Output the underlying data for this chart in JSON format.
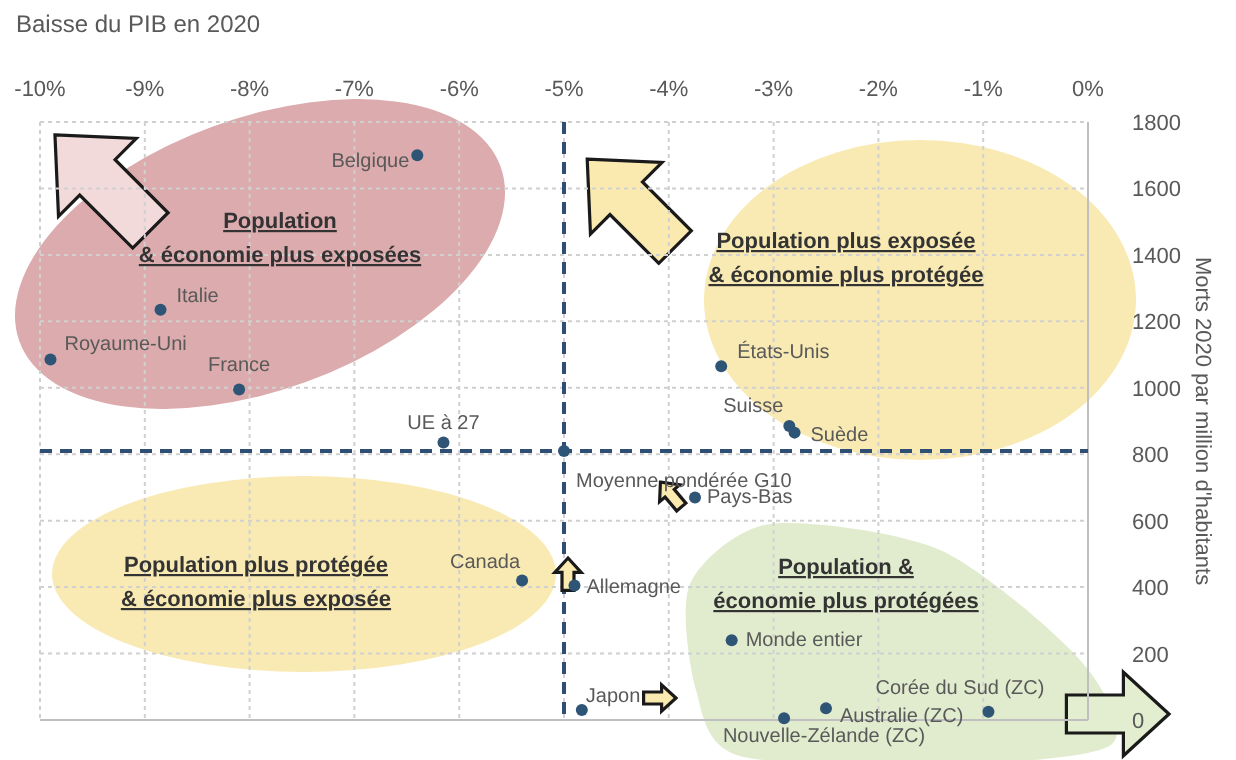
{
  "chart_data": {
    "type": "scatter",
    "title": "Baisse du PIB en 2020",
    "ylabel": "Morts 2020  par million d'habitants",
    "xlim": [
      -10,
      0
    ],
    "xticks": [
      {
        "value": -10,
        "label": "-10%"
      },
      {
        "value": -9,
        "label": "-9%"
      },
      {
        "value": -8,
        "label": "-8%"
      },
      {
        "value": -7,
        "label": "-7%"
      },
      {
        "value": -6,
        "label": "-6%"
      },
      {
        "value": -5,
        "label": "-5%"
      },
      {
        "value": -4,
        "label": "-4%"
      },
      {
        "value": -3,
        "label": "-3%"
      },
      {
        "value": -2,
        "label": "-2%"
      },
      {
        "value": -1,
        "label": "-1%"
      },
      {
        "value": 0,
        "label": "0%"
      }
    ],
    "ylim": [
      0,
      1800
    ],
    "yticks": [
      0,
      200,
      400,
      600,
      800,
      1000,
      1200,
      1400,
      1600,
      1800
    ],
    "grid": true,
    "marker": "circle",
    "series": [
      {
        "color": "#2f5576",
        "x": [
          -6.4,
          -8.85,
          -9.9,
          -8.1,
          -6.15,
          -5.0,
          -3.5,
          -2.85,
          -2.8,
          -3.75,
          -5.4,
          -4.9,
          -4.83,
          -3.4,
          -0.95,
          -2.5,
          -2.9
        ],
        "values": [
          1700,
          1235,
          1085,
          995,
          835,
          810,
          1065,
          885,
          865,
          670,
          420,
          405,
          30,
          240,
          25,
          35,
          5
        ]
      }
    ],
    "ref_lines": [
      {
        "axis": "x",
        "value": -5.0,
        "color": "#2e4f73",
        "line_style": "dashed"
      },
      {
        "axis": "y",
        "value": 810,
        "color": "#2e4f73",
        "line_style": "dashed"
      }
    ],
    "annotations": [
      {
        "text": "Belgique",
        "x": -6.4,
        "y": 1700
      },
      {
        "text": "Italie",
        "x": -8.85,
        "y": 1235
      },
      {
        "text": "Royaume-Uni",
        "x": -9.9,
        "y": 1085
      },
      {
        "text": "France",
        "x": -8.1,
        "y": 995
      },
      {
        "text": "UE à 27",
        "x": -6.15,
        "y": 835
      },
      {
        "text": "Moyenne pondérée G10",
        "x": -5.0,
        "y": 810
      },
      {
        "text": "États-Unis",
        "x": -3.5,
        "y": 1065
      },
      {
        "text": "Suisse",
        "x": -2.85,
        "y": 885
      },
      {
        "text": "Suède",
        "x": -2.8,
        "y": 865
      },
      {
        "text": "Pays-Bas",
        "x": -3.75,
        "y": 670
      },
      {
        "text": "Canada",
        "x": -5.4,
        "y": 420
      },
      {
        "text": "Allemagne",
        "x": -4.9,
        "y": 405
      },
      {
        "text": "Japon",
        "x": -4.83,
        "y": 30
      },
      {
        "text": "Monde entier",
        "x": -3.4,
        "y": 240
      },
      {
        "text": "Corée du Sud (ZC)",
        "x": -0.95,
        "y": 25
      },
      {
        "text": "Australie (ZC)",
        "x": -2.5,
        "y": 35
      },
      {
        "text": "Nouvelle-Zélande (ZC)",
        "x": -2.9,
        "y": 5
      },
      "Population\n& économie plus exposées",
      "Population plus exposée\n& économie plus protégée",
      "Population plus protégée\n& économie plus exposée",
      "Population &\néconomie plus protégées"
    ]
  }
}
